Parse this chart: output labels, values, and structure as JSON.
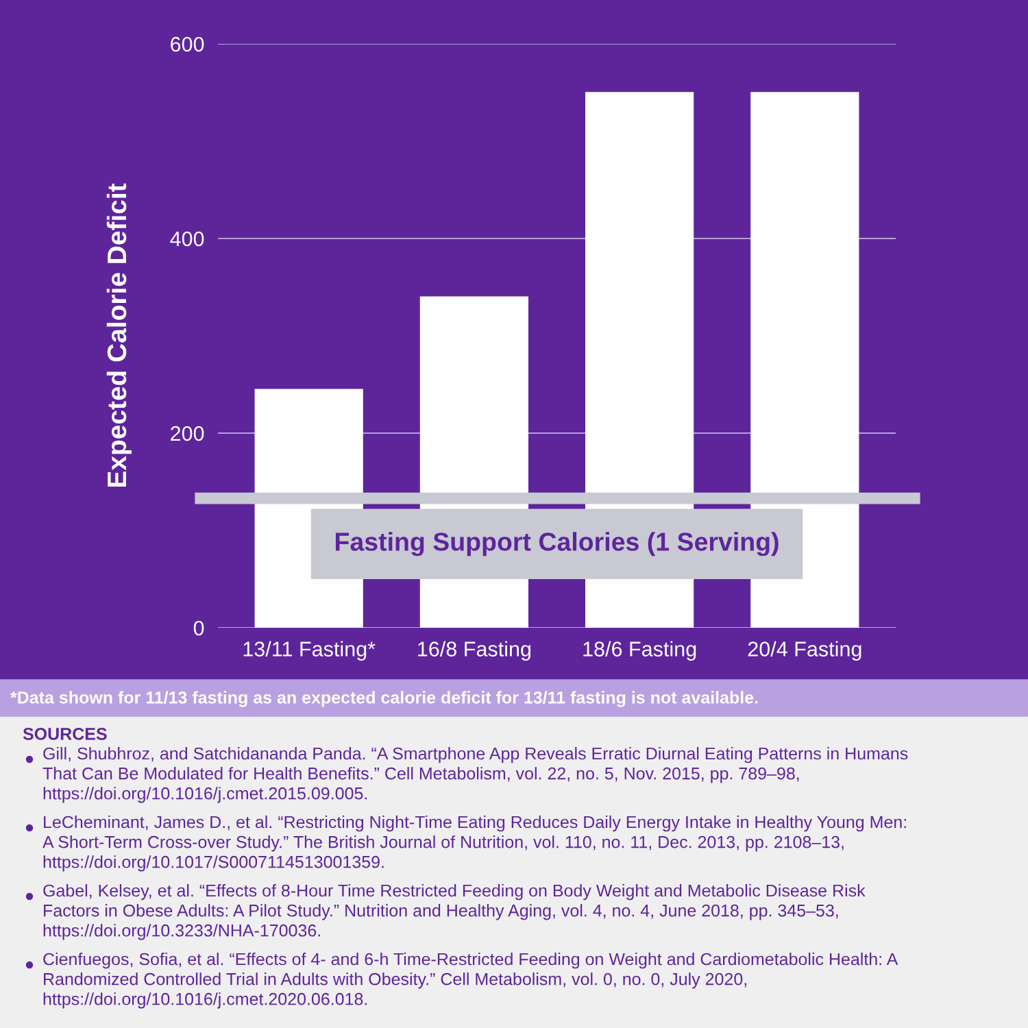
{
  "chart_data": {
    "type": "bar",
    "ylabel": "Expected Calorie Deficit",
    "categories": [
      "13/11 Fasting*",
      "16/8 Fasting",
      "18/6 Fasting",
      "20/4 Fasting"
    ],
    "values": [
      245,
      340,
      550,
      550
    ],
    "color": "#ffffff",
    "ylim": [
      0,
      600
    ],
    "yticks": [
      0,
      200,
      400,
      600
    ],
    "grid": "y",
    "ref_lines": [
      {
        "axis": "y",
        "value": 133,
        "label": "Fasting Support Calories (1 Serving)",
        "color": "#c8c9d3"
      }
    ],
    "annotations": [
      "*Data shown for 11/13 fasting as an expected calorie deficit for 13/11 fasting is not available.",
      "SOURCES",
      "Gill, Shubhroz, and Satchidananda Panda. “A Smartphone App Reveals Erratic Diurnal Eating Patterns in Humans\nThat Can Be Modulated for Health Benefits.” Cell Metabolism, vol. 22, no. 5, Nov. 2015, pp. 789–98,\nhttps://doi.org/10.1016/j.cmet.2015.09.005.",
      "LeCheminant, James D., et al. “Restricting Night-Time Eating Reduces Daily Energy Intake in Healthy Young Men:\nA Short-Term Cross-over Study.” The British Journal of Nutrition, vol. 110, no. 11, Dec. 2013, pp. 2108–13,\nhttps://doi.org/10.1017/S0007114513001359.",
      "Gabel, Kelsey, et al. “Effects of 8-Hour Time Restricted Feeding on Body Weight and Metabolic Disease Risk\nFactors in Obese Adults: A Pilot Study.” Nutrition and Healthy Aging, vol. 4, no. 4, June 2018, pp. 345–53,\nhttps://doi.org/10.3233/NHA-170036.",
      "Cienfuegos, Sofia, et al. “Effects of 4- and 6-h Time-Restricted Feeding on Weight and Cardiometabolic Health: A\nRandomized Controlled Trial in Adults with Obesity.” Cell Metabolism, vol. 0, no. 0, July 2020,\nhttps://doi.org/10.1016/j.cmet.2020.06.018."
    ]
  }
}
